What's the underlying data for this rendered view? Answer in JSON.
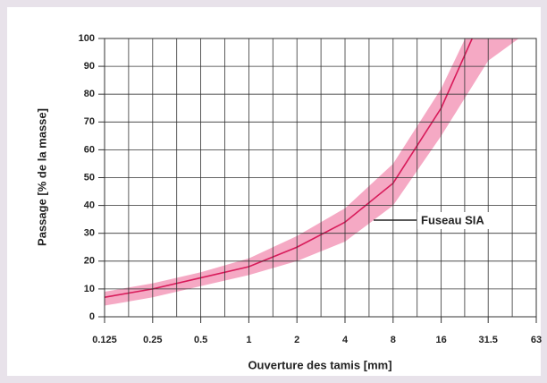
{
  "chart_data": {
    "type": "band_line",
    "xlabel": "Ouverture des tamis [mm]",
    "ylabel": "Passage [% de la masse]",
    "xscale": "log",
    "xlim": [
      0.125,
      63
    ],
    "xticks": [
      0.125,
      0.25,
      0.5,
      1,
      2,
      4,
      8,
      16,
      31.5,
      63
    ],
    "ylim": [
      0,
      100
    ],
    "yticks": [
      0,
      10,
      20,
      30,
      40,
      50,
      60,
      70,
      80,
      90,
      100
    ],
    "grid": true,
    "minor_grid": true,
    "line": {
      "color": "#d81b5a",
      "x": [
        0.125,
        0.25,
        0.5,
        1,
        2,
        4,
        8,
        16,
        25
      ],
      "values": [
        7,
        10,
        14,
        18,
        25,
        34,
        48,
        75,
        100
      ]
    },
    "band": {
      "name": "Fuseau SIA",
      "color": "#f5a9c4",
      "upper": {
        "x": [
          0.125,
          0.25,
          0.5,
          1,
          2,
          4,
          8,
          16,
          22.6
        ],
        "values": [
          9,
          12,
          16,
          21,
          29,
          39,
          55,
          82,
          100
        ]
      },
      "lower": {
        "x": [
          0.125,
          0.25,
          0.5,
          1,
          2,
          4,
          8,
          16,
          31.5,
          49
        ],
        "values": [
          4,
          7,
          11,
          15,
          20,
          27,
          40,
          65,
          92,
          100
        ]
      }
    }
  }
}
